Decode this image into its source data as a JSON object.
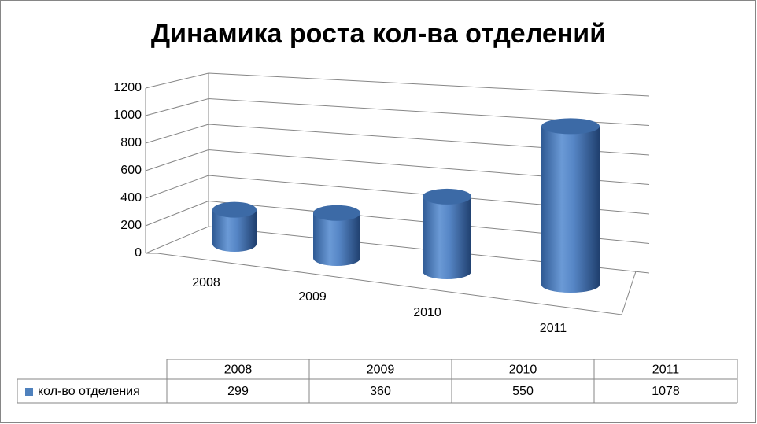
{
  "chart_data": {
    "type": "cylinder3d",
    "title": "Динамика роста кол-ва отделений",
    "categories": [
      "2008",
      "2009",
      "2010",
      "2011"
    ],
    "series": [
      {
        "name": "кол-во отделения",
        "color": "#4f81bd",
        "values": [
          299,
          360,
          550,
          1078
        ]
      }
    ],
    "ylim": [
      0,
      1200
    ],
    "yticks": [
      0,
      200,
      400,
      600,
      800,
      1000,
      1200
    ],
    "grid": true,
    "data_table": true
  }
}
